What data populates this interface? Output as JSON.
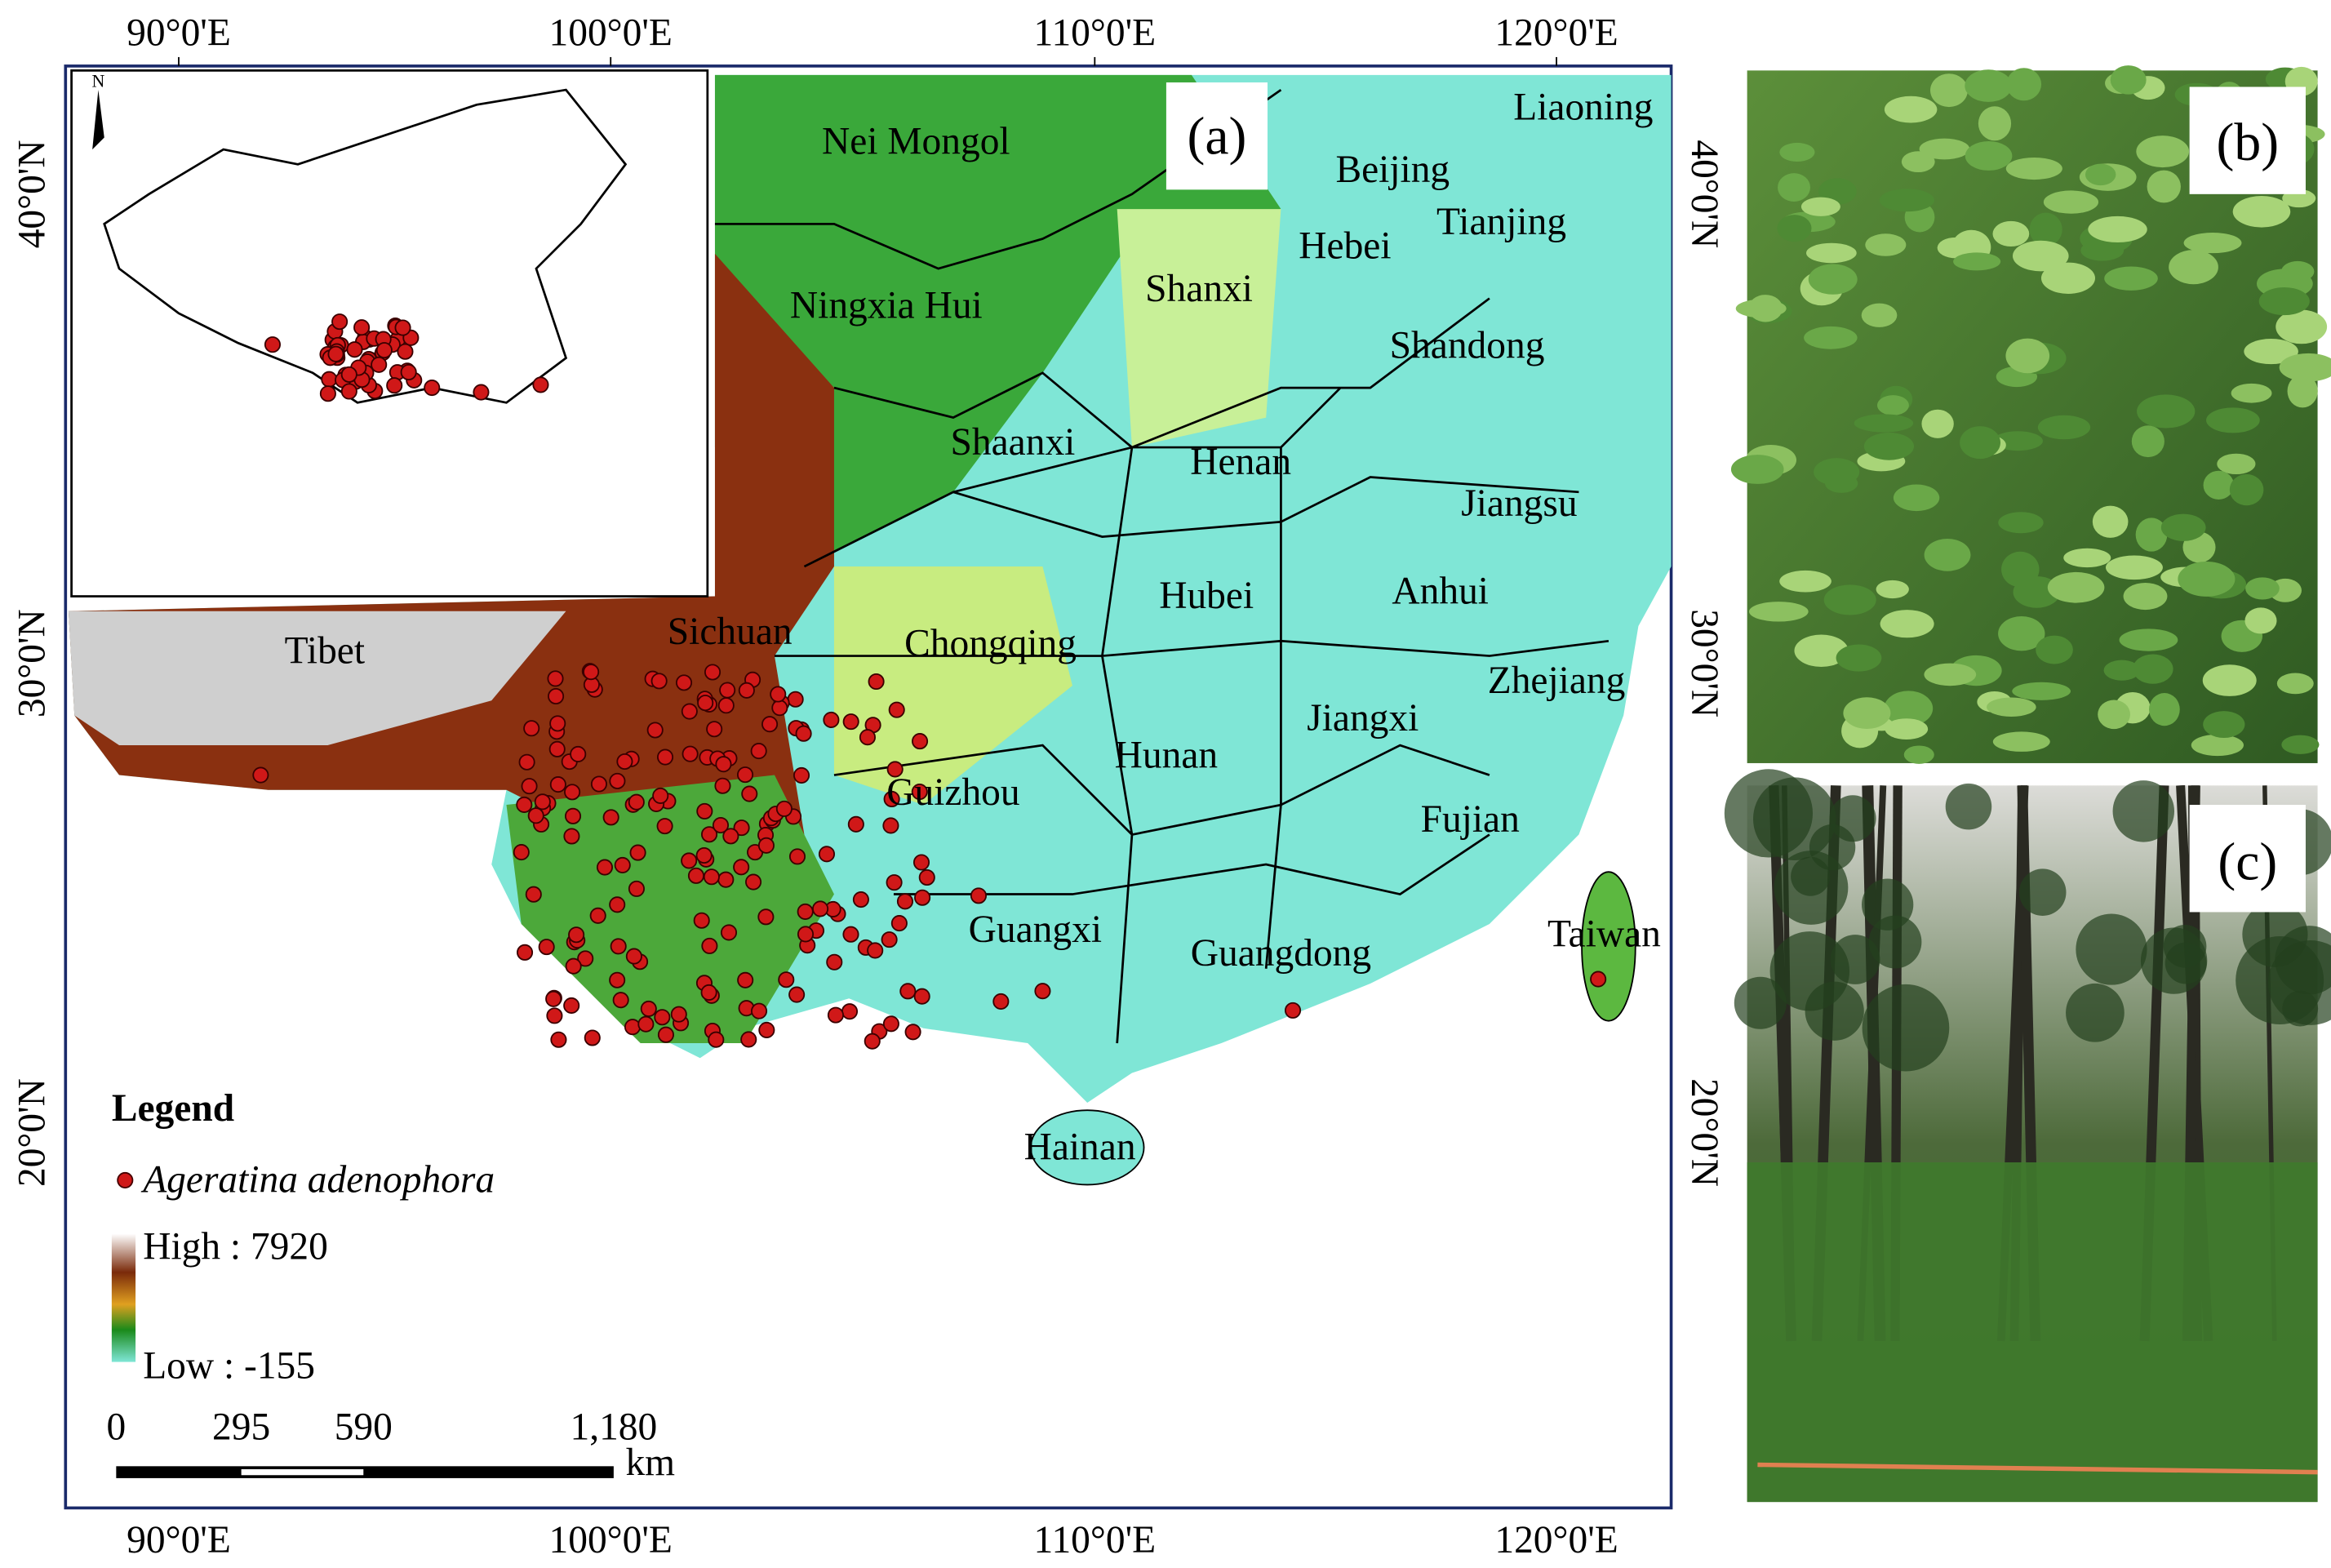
{
  "panels": {
    "a": "(a)",
    "b": "(b)",
    "c": "(c)"
  },
  "map": {
    "lon_labels": [
      "90°0'E",
      "100°0'E",
      "110°0'E",
      "120°0'E"
    ],
    "lat_labels": [
      "40°0'N",
      "30°0'N",
      "20°0'N"
    ],
    "provinces": [
      "Nei Mongol",
      "Liaoning",
      "Beijing",
      "Tianjing",
      "Hebei",
      "Shanxi",
      "Ningxia Hui",
      "Shandong",
      "Shaanxi",
      "Henan",
      "Jiangsu",
      "Hubei",
      "Anhui",
      "Tibet",
      "Sichuan",
      "Chongqing",
      "Zhejiang",
      "Jiangxi",
      "Hunan",
      "Guizhou",
      "Fujian",
      "Guangxi",
      "Guangdong",
      "Taiwan",
      "Hainan"
    ],
    "legend": {
      "title": "Legend",
      "species": "Ageratina adenophora",
      "high": "High : 7920",
      "low": "Low : -155"
    },
    "scale": {
      "ticks": [
        "0",
        "295",
        "590",
        "1,180"
      ],
      "unit": "km"
    }
  },
  "inset": {
    "north": "N"
  }
}
